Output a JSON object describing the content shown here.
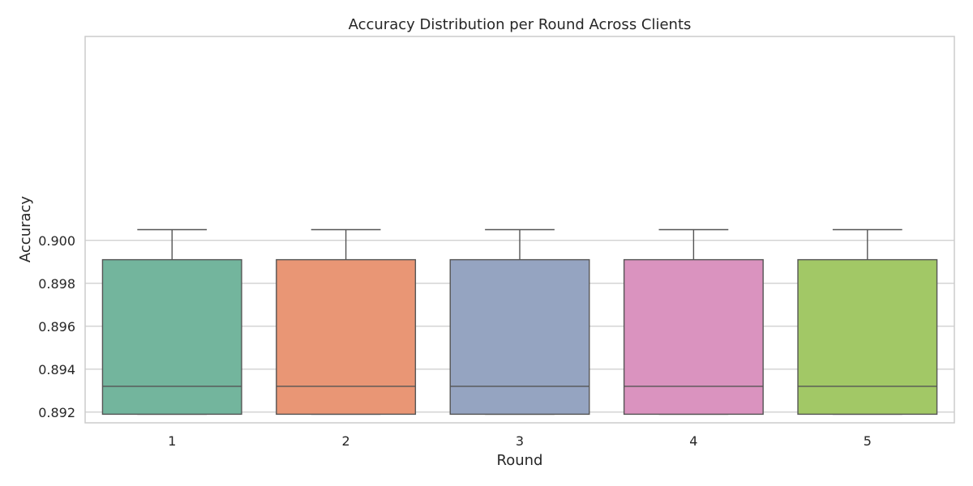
{
  "chart_data": {
    "type": "box",
    "title": "Accuracy Distribution per Round Across Clients",
    "xlabel": "Round",
    "ylabel": "Accuracy",
    "categories": [
      "1",
      "2",
      "3",
      "4",
      "5"
    ],
    "ylim": [
      0.8915,
      0.9095
    ],
    "yticks": [
      "0.892",
      "0.894",
      "0.896",
      "0.898",
      "0.900"
    ],
    "grid": true,
    "legend": "none",
    "colors": [
      "#73b59d",
      "#e99675",
      "#95a4c1",
      "#da93bf",
      "#a2c866"
    ],
    "edge_color": "#555555",
    "boxes": [
      {
        "category": "1",
        "whisker_low": 0.8919,
        "q1": 0.8919,
        "median": 0.8932,
        "q3": 0.8991,
        "whisker_high": 0.9005
      },
      {
        "category": "2",
        "whisker_low": 0.8919,
        "q1": 0.8919,
        "median": 0.8932,
        "q3": 0.8991,
        "whisker_high": 0.9005
      },
      {
        "category": "3",
        "whisker_low": 0.8919,
        "q1": 0.8919,
        "median": 0.8932,
        "q3": 0.8991,
        "whisker_high": 0.9005
      },
      {
        "category": "4",
        "whisker_low": 0.8919,
        "q1": 0.8919,
        "median": 0.8932,
        "q3": 0.8991,
        "whisker_high": 0.9005
      },
      {
        "category": "5",
        "whisker_low": 0.8919,
        "q1": 0.8919,
        "median": 0.8932,
        "q3": 0.8991,
        "whisker_high": 0.9005
      }
    ]
  }
}
